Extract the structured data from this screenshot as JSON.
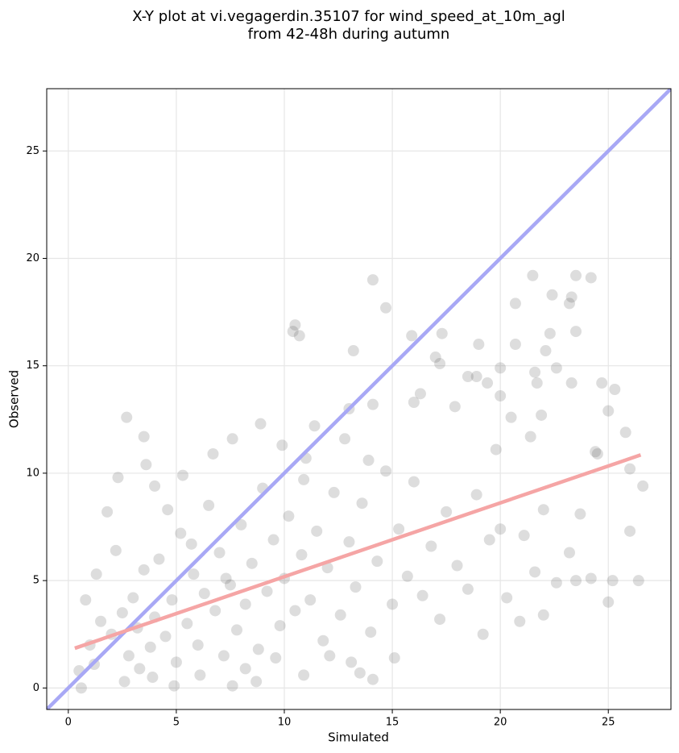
{
  "chart_data": {
    "type": "scatter",
    "title": [
      "X-Y plot at vi.vegagerdin.35107 for wind_speed_at_10m_agl",
      "from 42-48h during autumn"
    ],
    "x_label": "Simulated",
    "y_label": "Observed",
    "xlim": [
      -1,
      27.9
    ],
    "ylim": [
      -1,
      27.9
    ],
    "xticks": [
      0,
      5,
      10,
      15,
      20,
      25
    ],
    "yticks": [
      0,
      5,
      10,
      15,
      20,
      25
    ],
    "grid": true,
    "series": [
      {
        "type": "scatter",
        "color": "#555555",
        "x": [
          2.7,
          3.5,
          3.6,
          14.1,
          14.7,
          10.4,
          10.5,
          10.7,
          13.2,
          15.9,
          17.3,
          21.5,
          23.5,
          24.2,
          22.4,
          23.2,
          23.3,
          20.7,
          22.3,
          23.5,
          19,
          20.7,
          22.1,
          17,
          17.2,
          20,
          22.6,
          21.6,
          18.5,
          18.9,
          23.3,
          24.7,
          25.3,
          21.7,
          19.4,
          20,
          16,
          16.3,
          14.1,
          17.9,
          13,
          20.5,
          25,
          21.9,
          21.4,
          25.8,
          19.8,
          24.4,
          24.5,
          26,
          26.6,
          22,
          23.7,
          26,
          21.6,
          23.2,
          22.6,
          23.5,
          24.2,
          25.2,
          26.4,
          25,
          21.1,
          20.3,
          20.9,
          19.2,
          22,
          14.1,
          13.5,
          0.6,
          4.9,
          7.6,
          8.7,
          10.9,
          1,
          1.5,
          2,
          2.5,
          2.8,
          3,
          3.2,
          3.5,
          3.8,
          4,
          4.2,
          4.5,
          4.8,
          5,
          5.2,
          5.5,
          5.8,
          6,
          6.3,
          6.5,
          6.8,
          7,
          7.2,
          7.5,
          7.8,
          8,
          8.2,
          8.5,
          8.8,
          9,
          9.2,
          9.5,
          9.8,
          10,
          10.2,
          10.5,
          10.8,
          11,
          11.2,
          11.5,
          11.8,
          12,
          12.3,
          12.6,
          13,
          13.3,
          13.6,
          14,
          14.3,
          14.7,
          15,
          15.3,
          15.7,
          16,
          16.4,
          16.8,
          17.2,
          17.5,
          18,
          18.5,
          18.9,
          19.5,
          20,
          0.5,
          0.8,
          1.3,
          1.8,
          2.3,
          2.2,
          3.3,
          4,
          4.6,
          5.3,
          6.7,
          7.6,
          8.9,
          9.9,
          11.4,
          12.8,
          13.9,
          6.1,
          8.2,
          9.6,
          12.1,
          13.1,
          15.1,
          2.6,
          3.9,
          1.2,
          5.7,
          7.3,
          10.9
        ],
        "values": [
          12.6,
          11.7,
          10.4,
          19,
          17.7,
          16.6,
          16.9,
          16.4,
          15.7,
          16.4,
          16.5,
          19.2,
          19.2,
          19.1,
          18.3,
          17.9,
          18.2,
          17.9,
          16.5,
          16.6,
          16,
          16,
          15.7,
          15.4,
          15.1,
          14.9,
          14.9,
          14.7,
          14.5,
          14.5,
          14.2,
          14.2,
          13.9,
          14.2,
          14.2,
          13.6,
          13.3,
          13.7,
          13.2,
          13.1,
          13,
          12.6,
          12.9,
          12.7,
          11.7,
          11.9,
          11.1,
          11,
          10.9,
          10.2,
          9.4,
          8.3,
          8.1,
          7.3,
          5.4,
          6.3,
          4.9,
          5,
          5.1,
          5,
          5,
          4,
          7.1,
          4.2,
          3.1,
          2.5,
          3.4,
          0.4,
          0.7,
          0,
          0.1,
          0.1,
          0.3,
          0.6,
          2,
          3.1,
          2.5,
          3.5,
          1.5,
          4.2,
          2.8,
          5.5,
          1.9,
          3.3,
          6,
          2.4,
          4.1,
          1.2,
          7.2,
          3,
          5.3,
          2,
          4.4,
          8.5,
          3.6,
          6.3,
          1.5,
          4.8,
          2.7,
          7.6,
          3.9,
          5.8,
          1.8,
          9.3,
          4.5,
          6.9,
          2.9,
          5.1,
          8,
          3.6,
          6.2,
          10.7,
          4.1,
          7.3,
          2.2,
          5.6,
          9.1,
          3.4,
          6.8,
          4.7,
          8.6,
          2.6,
          5.9,
          10.1,
          3.9,
          7.4,
          5.2,
          9.6,
          4.3,
          6.6,
          3.2,
          8.2,
          5.7,
          4.6,
          9,
          6.9,
          7.4,
          0.8,
          4.1,
          5.3,
          8.2,
          9.8,
          6.4,
          0.9,
          9.4,
          8.3,
          9.9,
          10.9,
          11.6,
          12.3,
          11.3,
          12.2,
          11.6,
          10.6,
          0.6,
          0.9,
          1.4,
          1.5,
          1.2,
          1.4,
          0.3,
          0.5,
          1.1,
          6.7,
          5.1,
          9.7
        ]
      },
      {
        "type": "line",
        "color": "#a8a8f5",
        "x": [
          -1,
          27.9
        ],
        "values": [
          -1,
          27.9
        ]
      },
      {
        "type": "line",
        "color": "#f5a5a5",
        "x": [
          0.3,
          26.5
        ],
        "values": [
          1.85,
          10.85
        ]
      }
    ]
  }
}
